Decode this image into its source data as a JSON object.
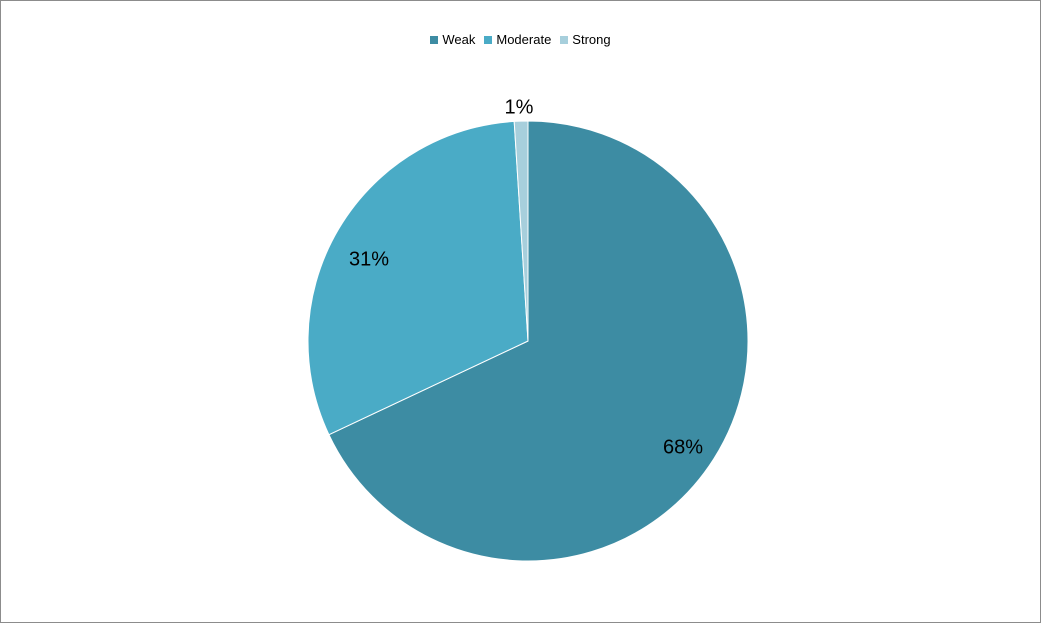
{
  "chart_data": {
    "type": "pie",
    "title": "",
    "legend_position": "top-center",
    "categories": [
      "Weak",
      "Moderate",
      "Strong"
    ],
    "values": [
      68,
      31,
      1
    ],
    "data_labels": [
      "68%",
      "31%",
      "1%"
    ],
    "colors": [
      "#3d8ca3",
      "#4aabc6",
      "#a7cfdc"
    ],
    "start_angle_deg": 0,
    "direction": "clockwise"
  }
}
